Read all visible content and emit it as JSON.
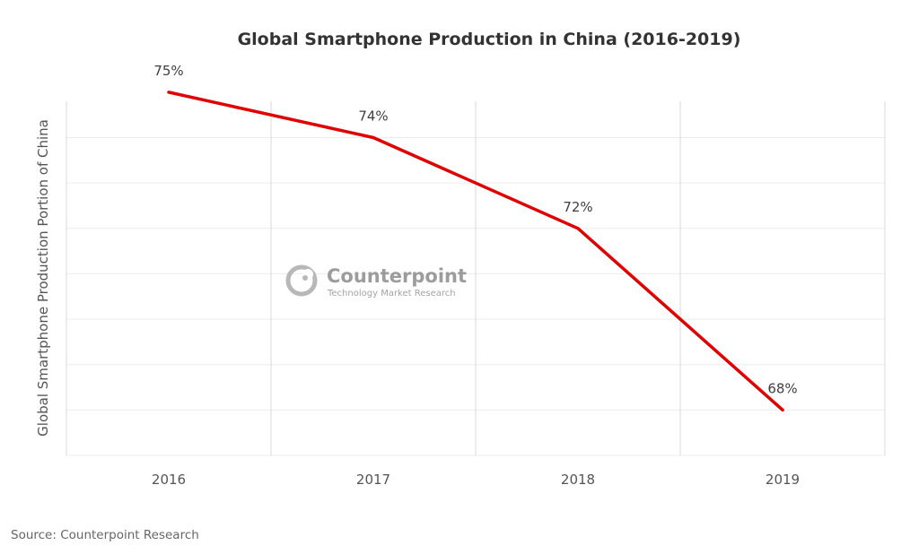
{
  "chart_data": {
    "type": "line",
    "title": "Global Smartphone Production in China (2016-2019)",
    "xlabel": "",
    "ylabel": "Global Smartphone Production Portion of China",
    "categories": [
      "2016",
      "2017",
      "2018",
      "2019"
    ],
    "series": [
      {
        "values": [
          75,
          74,
          72,
          68
        ],
        "labels": [
          "75%",
          "74%",
          "72%",
          "68%"
        ],
        "color": "#e00000"
      }
    ],
    "ylim": [
      67,
      74.8
    ],
    "grid": true,
    "legend": "none"
  },
  "watermark": {
    "name": "Counterpoint",
    "tagline": "Technology Market Research",
    "icon": "counterpoint-logo-icon"
  },
  "source": "Source: Counterpoint Research"
}
